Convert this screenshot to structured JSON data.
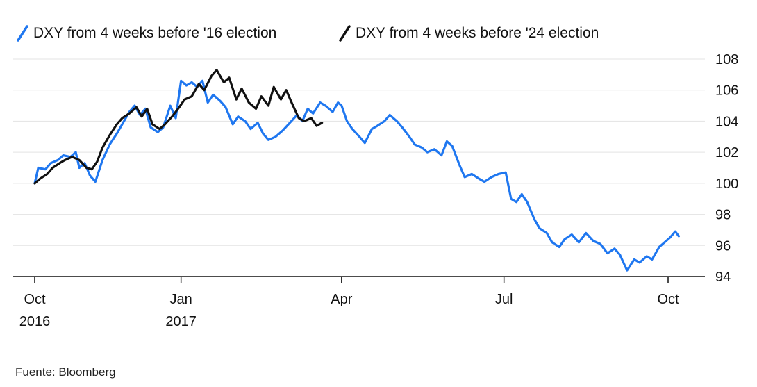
{
  "chart_data": {
    "type": "line",
    "legend_position": "top-left",
    "grid": true,
    "y_axis_side": "right",
    "ylim": [
      94,
      108
    ],
    "yticks": [
      94,
      96,
      98,
      100,
      102,
      104,
      106,
      108
    ],
    "xlim": [
      "2016-10-11",
      "2017-10-12"
    ],
    "xticks": [
      {
        "date": "2016-10-11",
        "label": "Oct",
        "sublabel": "2016"
      },
      {
        "date": "2017-01-01",
        "label": "Jan",
        "sublabel": "2017"
      },
      {
        "date": "2017-04-01",
        "label": "Apr",
        "sublabel": ""
      },
      {
        "date": "2017-07-01",
        "label": "Jul",
        "sublabel": ""
      },
      {
        "date": "2017-10-01",
        "label": "Oct",
        "sublabel": ""
      }
    ],
    "series": [
      {
        "name": "DXY from 4 weeks before '16 election",
        "color": "#1f77f0",
        "points": [
          [
            "2016-10-11",
            100.0
          ],
          [
            "2016-10-13",
            101.0
          ],
          [
            "2016-10-17",
            100.9
          ],
          [
            "2016-10-20",
            101.3
          ],
          [
            "2016-10-24",
            101.5
          ],
          [
            "2016-10-27",
            101.8
          ],
          [
            "2016-10-31",
            101.7
          ],
          [
            "2016-11-03",
            102.0
          ],
          [
            "2016-11-05",
            101.0
          ],
          [
            "2016-11-08",
            101.3
          ],
          [
            "2016-11-11",
            100.5
          ],
          [
            "2016-11-14",
            100.1
          ],
          [
            "2016-11-18",
            101.5
          ],
          [
            "2016-11-22",
            102.5
          ],
          [
            "2016-11-26",
            103.2
          ],
          [
            "2016-11-30",
            104.0
          ],
          [
            "2016-12-03",
            104.6
          ],
          [
            "2016-12-06",
            105.0
          ],
          [
            "2016-12-09",
            104.4
          ],
          [
            "2016-12-12",
            104.8
          ],
          [
            "2016-12-15",
            103.6
          ],
          [
            "2016-12-19",
            103.3
          ],
          [
            "2016-12-22",
            103.6
          ],
          [
            "2016-12-26",
            105.0
          ],
          [
            "2016-12-29",
            104.2
          ],
          [
            "2017-01-01",
            106.6
          ],
          [
            "2017-01-04",
            106.3
          ],
          [
            "2017-01-07",
            106.5
          ],
          [
            "2017-01-10",
            106.2
          ],
          [
            "2017-01-13",
            106.6
          ],
          [
            "2017-01-16",
            105.2
          ],
          [
            "2017-01-19",
            105.7
          ],
          [
            "2017-01-23",
            105.3
          ],
          [
            "2017-01-26",
            104.9
          ],
          [
            "2017-01-30",
            103.8
          ],
          [
            "2017-02-02",
            104.3
          ],
          [
            "2017-02-06",
            104.0
          ],
          [
            "2017-02-09",
            103.5
          ],
          [
            "2017-02-13",
            103.9
          ],
          [
            "2017-02-16",
            103.2
          ],
          [
            "2017-02-19",
            102.8
          ],
          [
            "2017-02-23",
            103.0
          ],
          [
            "2017-02-27",
            103.4
          ],
          [
            "2017-03-03",
            103.9
          ],
          [
            "2017-03-07",
            104.4
          ],
          [
            "2017-03-10",
            104.0
          ],
          [
            "2017-03-13",
            104.8
          ],
          [
            "2017-03-16",
            104.5
          ],
          [
            "2017-03-20",
            105.2
          ],
          [
            "2017-03-23",
            105.0
          ],
          [
            "2017-03-27",
            104.6
          ],
          [
            "2017-03-30",
            105.2
          ],
          [
            "2017-04-01",
            105.0
          ],
          [
            "2017-04-04",
            104.0
          ],
          [
            "2017-04-07",
            103.5
          ],
          [
            "2017-04-11",
            103.0
          ],
          [
            "2017-04-14",
            102.6
          ],
          [
            "2017-04-18",
            103.5
          ],
          [
            "2017-04-21",
            103.7
          ],
          [
            "2017-04-25",
            104.0
          ],
          [
            "2017-04-28",
            104.4
          ],
          [
            "2017-05-02",
            104.0
          ],
          [
            "2017-05-05",
            103.6
          ],
          [
            "2017-05-09",
            103.0
          ],
          [
            "2017-05-12",
            102.5
          ],
          [
            "2017-05-16",
            102.3
          ],
          [
            "2017-05-19",
            102.0
          ],
          [
            "2017-05-23",
            102.2
          ],
          [
            "2017-05-27",
            101.8
          ],
          [
            "2017-05-30",
            102.7
          ],
          [
            "2017-06-02",
            102.4
          ],
          [
            "2017-06-06",
            101.2
          ],
          [
            "2017-06-09",
            100.4
          ],
          [
            "2017-06-13",
            100.6
          ],
          [
            "2017-06-17",
            100.3
          ],
          [
            "2017-06-20",
            100.1
          ],
          [
            "2017-06-24",
            100.4
          ],
          [
            "2017-06-28",
            100.6
          ],
          [
            "2017-07-02",
            100.7
          ],
          [
            "2017-07-05",
            99.0
          ],
          [
            "2017-07-08",
            98.8
          ],
          [
            "2017-07-11",
            99.3
          ],
          [
            "2017-07-14",
            98.8
          ],
          [
            "2017-07-18",
            97.7
          ],
          [
            "2017-07-21",
            97.1
          ],
          [
            "2017-07-25",
            96.8
          ],
          [
            "2017-07-28",
            96.2
          ],
          [
            "2017-08-01",
            95.9
          ],
          [
            "2017-08-04",
            96.4
          ],
          [
            "2017-08-08",
            96.7
          ],
          [
            "2017-08-12",
            96.2
          ],
          [
            "2017-08-16",
            96.8
          ],
          [
            "2017-08-20",
            96.3
          ],
          [
            "2017-08-24",
            96.1
          ],
          [
            "2017-08-28",
            95.5
          ],
          [
            "2017-09-01",
            95.8
          ],
          [
            "2017-09-04",
            95.4
          ],
          [
            "2017-09-08",
            94.4
          ],
          [
            "2017-09-12",
            95.1
          ],
          [
            "2017-09-15",
            94.9
          ],
          [
            "2017-09-19",
            95.3
          ],
          [
            "2017-09-22",
            95.1
          ],
          [
            "2017-09-26",
            95.9
          ],
          [
            "2017-09-29",
            96.2
          ],
          [
            "2017-10-02",
            96.5
          ],
          [
            "2017-10-05",
            96.9
          ],
          [
            "2017-10-07",
            96.6
          ]
        ]
      },
      {
        "name": "DXY from 4 weeks before '24 election",
        "color": "#111111",
        "points": [
          [
            "2016-10-11",
            100.0
          ],
          [
            "2016-10-14",
            100.3
          ],
          [
            "2016-10-18",
            100.6
          ],
          [
            "2016-10-21",
            101.0
          ],
          [
            "2016-10-25",
            101.3
          ],
          [
            "2016-10-28",
            101.5
          ],
          [
            "2016-11-01",
            101.7
          ],
          [
            "2016-11-05",
            101.5
          ],
          [
            "2016-11-09",
            101.0
          ],
          [
            "2016-11-12",
            100.9
          ],
          [
            "2016-11-15",
            101.4
          ],
          [
            "2016-11-18",
            102.3
          ],
          [
            "2016-11-22",
            103.1
          ],
          [
            "2016-11-26",
            103.8
          ],
          [
            "2016-11-29",
            104.2
          ],
          [
            "2016-12-03",
            104.5
          ],
          [
            "2016-12-07",
            104.9
          ],
          [
            "2016-12-10",
            104.3
          ],
          [
            "2016-12-13",
            104.8
          ],
          [
            "2016-12-16",
            103.8
          ],
          [
            "2016-12-20",
            103.5
          ],
          [
            "2016-12-23",
            103.8
          ],
          [
            "2016-12-27",
            104.3
          ],
          [
            "2016-12-31",
            104.9
          ],
          [
            "2017-01-03",
            105.4
          ],
          [
            "2017-01-07",
            105.6
          ],
          [
            "2017-01-11",
            106.4
          ],
          [
            "2017-01-14",
            106.0
          ],
          [
            "2017-01-18",
            106.9
          ],
          [
            "2017-01-21",
            107.3
          ],
          [
            "2017-01-25",
            106.5
          ],
          [
            "2017-01-28",
            106.8
          ],
          [
            "2017-02-01",
            105.4
          ],
          [
            "2017-02-04",
            106.1
          ],
          [
            "2017-02-08",
            105.2
          ],
          [
            "2017-02-12",
            104.8
          ],
          [
            "2017-02-15",
            105.6
          ],
          [
            "2017-02-19",
            105.0
          ],
          [
            "2017-02-22",
            106.2
          ],
          [
            "2017-02-26",
            105.4
          ],
          [
            "2017-03-01",
            106.0
          ],
          [
            "2017-03-04",
            105.2
          ],
          [
            "2017-03-08",
            104.2
          ],
          [
            "2017-03-11",
            104.0
          ],
          [
            "2017-03-15",
            104.2
          ],
          [
            "2017-03-18",
            103.7
          ],
          [
            "2017-03-21",
            103.9
          ]
        ]
      }
    ],
    "source": "Fuente: Bloomberg"
  }
}
